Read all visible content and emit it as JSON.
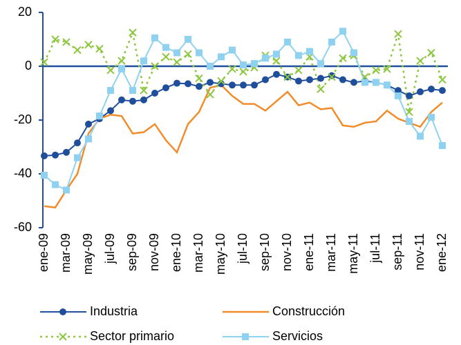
{
  "chart_data": {
    "type": "line",
    "categories": [
      "ene-09",
      null,
      "mar-09",
      null,
      "may-09",
      null,
      "jul-09",
      null,
      "sep-09",
      null,
      "nov-09",
      null,
      "ene-10",
      null,
      "mar-10",
      null,
      "may-10",
      null,
      "jul-10",
      null,
      "sep-10",
      null,
      "nov-10",
      null,
      "ene-11",
      null,
      "mar-11",
      null,
      "may-11",
      null,
      "jul-11",
      null,
      "sep-11",
      null,
      "nov-11",
      null,
      "ene-12"
    ],
    "series": [
      {
        "name": "Industria",
        "color": "#1f4e9a",
        "values": [
          -33.3,
          -33,
          -32,
          -28.5,
          -21.5,
          -19.5,
          -16.5,
          -12.5,
          -13,
          -12.5,
          -10,
          -8,
          -6.3,
          -6.5,
          -7.5,
          -6,
          -6.5,
          -7,
          -7,
          -7,
          -5,
          -3,
          -4,
          -5.5,
          -5,
          -4.5,
          -3.5,
          -5,
          -6,
          -5.5,
          -6,
          -7,
          -9,
          -11,
          -9.5,
          -8.5,
          -9
        ]
      },
      {
        "name": "Construcción",
        "color": "#f08c2a",
        "values": [
          -52,
          -52.5,
          -46,
          -40,
          -25,
          -19.5,
          -18,
          -18.5,
          -25,
          -24.5,
          -21.5,
          -27.5,
          -32,
          -21.5,
          -17,
          -8,
          -7,
          -11,
          -14,
          -14,
          -16.5,
          -13,
          -9.5,
          -14.5,
          -13.5,
          -16,
          -15.5,
          -22,
          -22.5,
          -21,
          -20.5,
          -16.5,
          -19.5,
          -21,
          -22.5,
          -17,
          -13.5
        ]
      },
      {
        "name": "Sector primario",
        "color": "#8dc63f",
        "values": [
          1.5,
          10,
          9,
          6,
          8,
          6.5,
          -1.5,
          2,
          12.5,
          -9,
          0,
          3.5,
          1.5,
          4.5,
          -4.5,
          -10.5,
          -5.5,
          -1,
          -2,
          -0.5,
          4,
          2,
          -4,
          -1.5,
          3.5,
          -8.5,
          -4,
          3,
          4,
          -4,
          -1.5,
          -1,
          12,
          -17,
          2,
          5,
          -5
        ]
      },
      {
        "name": "Servicios",
        "color": "#8fd1f0",
        "values": [
          -40.5,
          -44,
          -46,
          -34,
          -27,
          -18.5,
          -9,
          -1,
          -9,
          2,
          10.5,
          7,
          5,
          10,
          5,
          0,
          3.5,
          6,
          0.5,
          1,
          3,
          4.5,
          9,
          4,
          5.5,
          1,
          9,
          13,
          5,
          -6,
          -6,
          -7,
          -11,
          -20.5,
          -26,
          -19,
          -29.5
        ]
      }
    ],
    "ylim": [
      -60,
      20
    ],
    "yticks": [
      -60,
      -40,
      -20,
      0,
      20
    ]
  }
}
